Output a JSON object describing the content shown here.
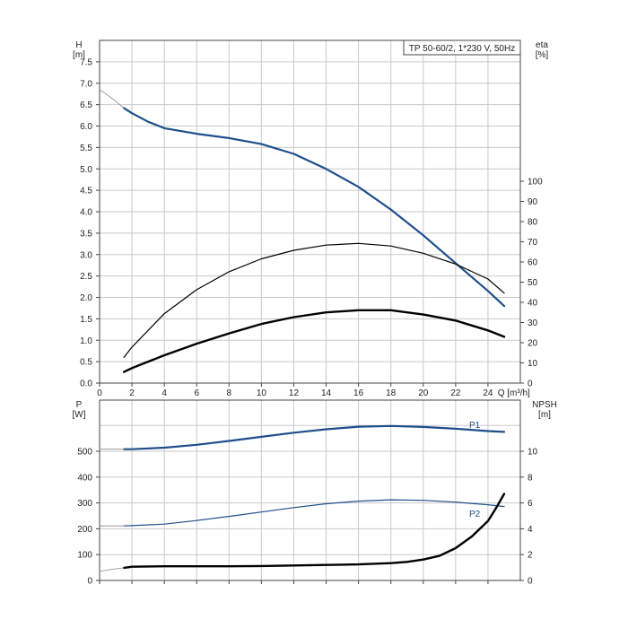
{
  "chart_data": [
    {
      "type": "line",
      "title": "TP 50-60/2, 1*230 V, 50Hz",
      "xlabel": "Q [m³/h]",
      "ylabel_left": "H\n[m]",
      "ylabel_right": "eta\n[%]",
      "xlim": [
        0,
        26
      ],
      "ylim_left": [
        0,
        8
      ],
      "ylim_right": [
        0,
        100
      ],
      "x_ticks": [
        0,
        2,
        4,
        6,
        8,
        10,
        12,
        14,
        16,
        18,
        20,
        22,
        24
      ],
      "y_left_ticks": [
        "0.0",
        "0.5",
        "1.0",
        "1.5",
        "2.0",
        "2.5",
        "3.0",
        "3.5",
        "4.0",
        "4.5",
        "5.0",
        "5.5",
        "6.0",
        "6.5",
        "7.0",
        "7.5"
      ],
      "y_right_ticks": [
        0,
        10,
        20,
        30,
        40,
        50,
        60,
        70,
        80,
        90,
        100
      ],
      "grid": true,
      "series": [
        {
          "axis": "left",
          "color": "#1f4e8c",
          "width": 2.2,
          "x": [
            1.5,
            2,
            3,
            4,
            6,
            8,
            10,
            12,
            14,
            16,
            18,
            20,
            22,
            24,
            25
          ],
          "y": [
            6.42,
            6.3,
            6.1,
            5.95,
            5.82,
            5.72,
            5.58,
            5.35,
            5.0,
            4.58,
            4.05,
            3.45,
            2.8,
            2.15,
            1.8
          ]
        },
        {
          "axis": "left",
          "color": "#888888",
          "width": 0.8,
          "x": [
            0,
            0.5,
            1,
            1.5
          ],
          "y": [
            6.85,
            6.72,
            6.58,
            6.42
          ]
        },
        {
          "axis": "left",
          "color": "#000000",
          "width": 1.2,
          "x": [
            1.5,
            2,
            4,
            6,
            8,
            10,
            12,
            14,
            16,
            18,
            20,
            22,
            24,
            25
          ],
          "y": [
            0.6,
            0.84,
            1.62,
            2.18,
            2.6,
            2.9,
            3.1,
            3.22,
            3.26,
            3.2,
            3.03,
            2.78,
            2.43,
            2.1
          ]
        },
        {
          "axis": "left",
          "color": "#000000",
          "width": 2.4,
          "x": [
            1.5,
            2,
            4,
            6,
            8,
            10,
            12,
            14,
            16,
            18,
            20,
            22,
            24,
            25
          ],
          "y": [
            0.26,
            0.35,
            0.65,
            0.92,
            1.16,
            1.38,
            1.54,
            1.65,
            1.7,
            1.7,
            1.6,
            1.46,
            1.23,
            1.08
          ]
        }
      ]
    },
    {
      "type": "line",
      "xlim": [
        0,
        26
      ],
      "ylim_left": [
        0,
        700
      ],
      "ylim_right": [
        0,
        14
      ],
      "ylabel_left": "P\n[W]",
      "ylabel_right": "NPSH\n[m]",
      "y_left_ticks": [
        0,
        100,
        200,
        300,
        400,
        500
      ],
      "y_right_ticks": [
        0,
        2,
        4,
        6,
        8,
        10
      ],
      "x_ticks": [
        0,
        2,
        4,
        6,
        8,
        10,
        12,
        14,
        16,
        18,
        20,
        22,
        24
      ],
      "grid": true,
      "series": [
        {
          "name": "P1",
          "axis": "left",
          "color": "#1f4e8c",
          "width": 2.2,
          "x": [
            1.5,
            2,
            4,
            6,
            8,
            10,
            12,
            14,
            16,
            18,
            20,
            22,
            24,
            25
          ],
          "y": [
            508,
            508,
            514,
            525,
            540,
            556,
            572,
            585,
            595,
            598,
            594,
            587,
            578,
            575
          ]
        },
        {
          "axis": "left",
          "color": "#888888",
          "width": 0.8,
          "x": [
            0,
            1.5
          ],
          "y": [
            508,
            508
          ]
        },
        {
          "name": "P2",
          "axis": "left",
          "color": "#1f4e8c",
          "width": 1.2,
          "x": [
            1.5,
            2,
            4,
            6,
            8,
            10,
            12,
            14,
            16,
            18,
            20,
            22,
            24,
            25
          ],
          "y": [
            211,
            212,
            218,
            232,
            248,
            265,
            282,
            297,
            307,
            312,
            310,
            303,
            293,
            286
          ]
        },
        {
          "axis": "left",
          "color": "#888888",
          "width": 0.8,
          "x": [
            0,
            1.5
          ],
          "y": [
            211,
            211
          ]
        },
        {
          "axis": "right",
          "color": "#000000",
          "width": 2.4,
          "x": [
            1.5,
            2,
            4,
            6,
            8,
            10,
            12,
            14,
            16,
            18,
            19,
            20,
            21,
            22,
            23,
            24,
            24.5,
            25
          ],
          "y": [
            0.98,
            1.06,
            1.1,
            1.1,
            1.1,
            1.12,
            1.16,
            1.2,
            1.24,
            1.34,
            1.44,
            1.62,
            1.9,
            2.5,
            3.4,
            4.6,
            5.6,
            6.7
          ]
        },
        {
          "axis": "right",
          "color": "#888888",
          "width": 0.8,
          "x": [
            0,
            0.5,
            1,
            1.5
          ],
          "y": [
            0.72,
            0.8,
            0.9,
            0.98
          ]
        }
      ]
    }
  ]
}
